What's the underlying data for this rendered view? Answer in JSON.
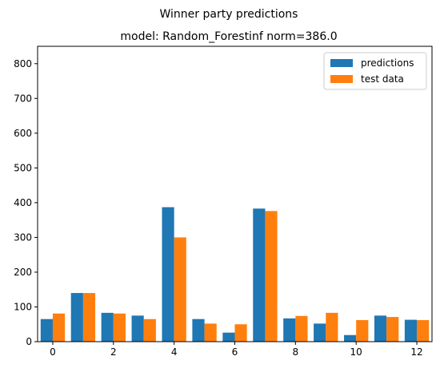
{
  "chart_data": {
    "type": "bar",
    "suptitle": "Winner party predictions",
    "title": "model: Random_Forestinf norm=386.0",
    "xlabel": "",
    "ylabel": "",
    "x": [
      0,
      1,
      2,
      3,
      4,
      5,
      6,
      7,
      8,
      9,
      10,
      11,
      12
    ],
    "xlim": [
      -0.5,
      12.5
    ],
    "ylim": [
      0,
      850
    ],
    "xticks": [
      0,
      2,
      4,
      6,
      8,
      10,
      12
    ],
    "yticks": [
      0,
      100,
      200,
      300,
      400,
      500,
      600,
      700,
      800
    ],
    "series": [
      {
        "name": "predictions",
        "color": "#1f77b4",
        "values": [
          65,
          140,
          83,
          75,
          387,
          65,
          26,
          383,
          67,
          52,
          19,
          75,
          63
        ]
      },
      {
        "name": "test data",
        "color": "#ff7f0e",
        "values": [
          81,
          140,
          81,
          65,
          300,
          52,
          50,
          376,
          74,
          83,
          62,
          71,
          62
        ]
      }
    ],
    "legend": "top-right",
    "grid": false
  }
}
